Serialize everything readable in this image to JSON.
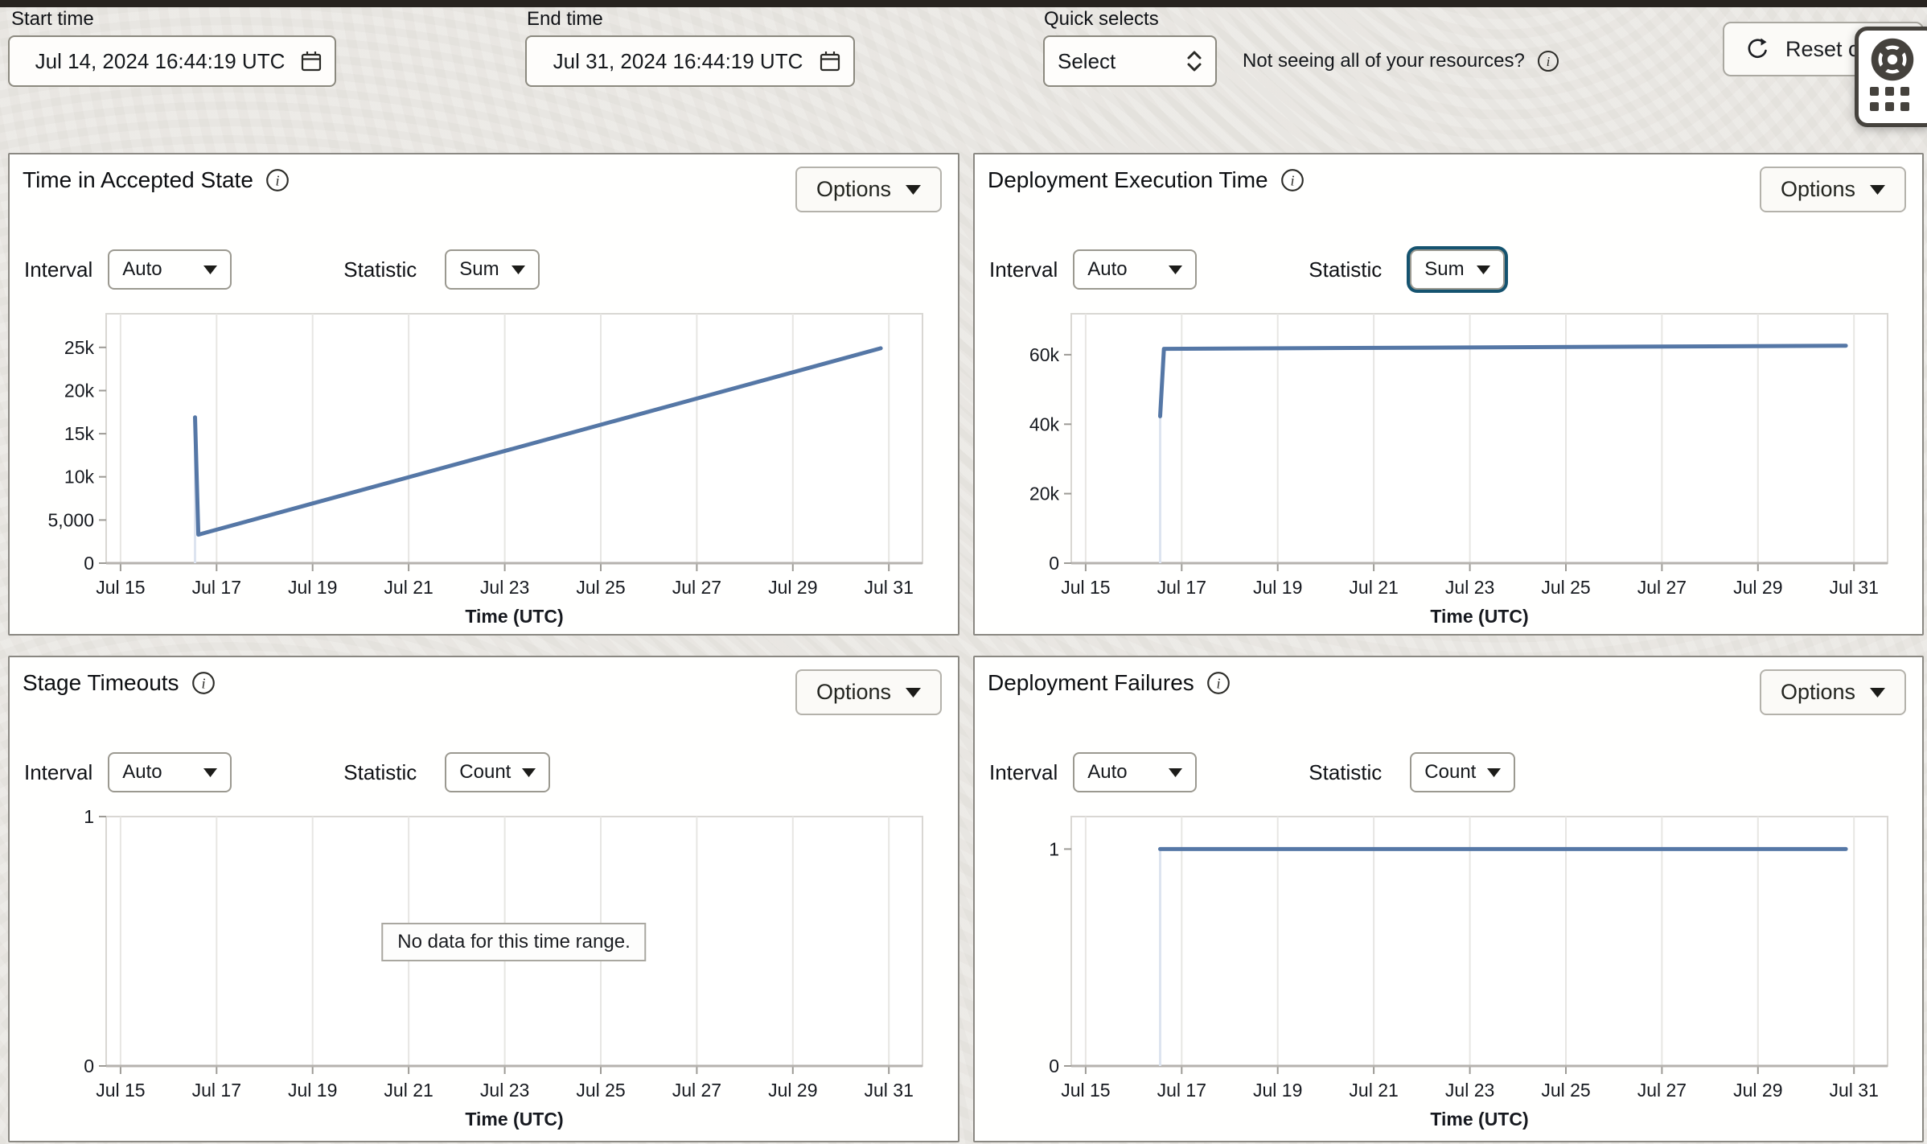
{
  "top_bar": {
    "start_time_label": "Start time",
    "start_time_value": "Jul 14, 2024 16:44:19 UTC",
    "end_time_label": "End time",
    "end_time_value": "Jul 31, 2024 16:44:19 UTC",
    "quick_selects_label": "Quick selects",
    "quick_selects_value": "Select",
    "resources_hint": "Not seeing all of your resources?",
    "reset_button_label": "Reset c"
  },
  "colors": {
    "chart_line": "#5577a6",
    "focus_ring": "#15536f"
  },
  "panels": [
    {
      "title": "Time in Accepted State",
      "options_label": "Options",
      "interval_label": "Interval",
      "interval_value": "Auto",
      "statistic_label": "Statistic",
      "statistic_value": "Sum"
    },
    {
      "title": "Deployment Execution Time",
      "options_label": "Options",
      "interval_label": "Interval",
      "interval_value": "Auto",
      "statistic_label": "Statistic",
      "statistic_value": "Sum"
    },
    {
      "title": "Stage Timeouts",
      "options_label": "Options",
      "interval_label": "Interval",
      "interval_value": "Auto",
      "statistic_label": "Statistic",
      "statistic_value": "Count",
      "no_data_message": "No data for this time range."
    },
    {
      "title": "Deployment Failures",
      "options_label": "Options",
      "interval_label": "Interval",
      "interval_value": "Auto",
      "statistic_label": "Statistic",
      "statistic_value": "Count"
    }
  ],
  "chart_data": [
    {
      "type": "line",
      "title": "Time in Accepted State",
      "xlabel": "Time (UTC)",
      "x_domain": [
        14.7,
        31.7
      ],
      "x_ticks": [
        {
          "v": 15,
          "l": "Jul 15"
        },
        {
          "v": 17,
          "l": "Jul 17"
        },
        {
          "v": 19,
          "l": "Jul 19"
        },
        {
          "v": 21,
          "l": "Jul 21"
        },
        {
          "v": 23,
          "l": "Jul 23"
        },
        {
          "v": 25,
          "l": "Jul 25"
        },
        {
          "v": 27,
          "l": "Jul 27"
        },
        {
          "v": 29,
          "l": "Jul 29"
        },
        {
          "v": 31,
          "l": "Jul 31"
        }
      ],
      "y_max": 28900,
      "y_ticks": [
        {
          "v": 0,
          "l": "0"
        },
        {
          "v": 5000,
          "l": "5,000"
        },
        {
          "v": 10000,
          "l": "10k"
        },
        {
          "v": 15000,
          "l": "15k"
        },
        {
          "v": 20000,
          "l": "20k"
        },
        {
          "v": 25000,
          "l": "25k"
        }
      ],
      "line_color": "#5577a6",
      "series": [
        {
          "name": "Sum",
          "points": [
            [
              16.55,
              16900
            ],
            [
              16.62,
              3300
            ],
            [
              30.83,
              24900
            ]
          ]
        }
      ]
    },
    {
      "type": "line",
      "title": "Deployment Execution Time",
      "xlabel": "Time (UTC)",
      "x_domain": [
        14.7,
        31.7
      ],
      "x_ticks": [
        {
          "v": 15,
          "l": "Jul 15"
        },
        {
          "v": 17,
          "l": "Jul 17"
        },
        {
          "v": 19,
          "l": "Jul 19"
        },
        {
          "v": 21,
          "l": "Jul 21"
        },
        {
          "v": 23,
          "l": "Jul 23"
        },
        {
          "v": 25,
          "l": "Jul 25"
        },
        {
          "v": 27,
          "l": "Jul 27"
        },
        {
          "v": 29,
          "l": "Jul 29"
        },
        {
          "v": 31,
          "l": "Jul 31"
        }
      ],
      "y_max": 71800,
      "y_ticks": [
        {
          "v": 0,
          "l": "0"
        },
        {
          "v": 20000,
          "l": "20k"
        },
        {
          "v": 40000,
          "l": "40k"
        },
        {
          "v": 60000,
          "l": "60k"
        }
      ],
      "line_color": "#5577a6",
      "series": [
        {
          "name": "Sum",
          "points": [
            [
              16.55,
              42300
            ],
            [
              16.63,
              61700
            ],
            [
              30.83,
              62600
            ]
          ]
        }
      ]
    },
    {
      "type": "line",
      "title": "Stage Timeouts",
      "xlabel": "Time (UTC)",
      "x_domain": [
        14.7,
        31.7
      ],
      "x_ticks": [
        {
          "v": 15,
          "l": "Jul 15"
        },
        {
          "v": 17,
          "l": "Jul 17"
        },
        {
          "v": 19,
          "l": "Jul 19"
        },
        {
          "v": 21,
          "l": "Jul 21"
        },
        {
          "v": 23,
          "l": "Jul 23"
        },
        {
          "v": 25,
          "l": "Jul 25"
        },
        {
          "v": 27,
          "l": "Jul 27"
        },
        {
          "v": 29,
          "l": "Jul 29"
        },
        {
          "v": 31,
          "l": "Jul 31"
        }
      ],
      "y_max": 1,
      "y_ticks": [
        {
          "v": 0,
          "l": "0"
        },
        {
          "v": 1,
          "l": "1"
        }
      ],
      "line_color": "#5577a6",
      "series": [],
      "no_data": "No data for this time range."
    },
    {
      "type": "line",
      "title": "Deployment Failures",
      "xlabel": "Time (UTC)",
      "x_domain": [
        14.7,
        31.7
      ],
      "x_ticks": [
        {
          "v": 15,
          "l": "Jul 15"
        },
        {
          "v": 17,
          "l": "Jul 17"
        },
        {
          "v": 19,
          "l": "Jul 19"
        },
        {
          "v": 21,
          "l": "Jul 21"
        },
        {
          "v": 23,
          "l": "Jul 23"
        },
        {
          "v": 25,
          "l": "Jul 25"
        },
        {
          "v": 27,
          "l": "Jul 27"
        },
        {
          "v": 29,
          "l": "Jul 29"
        },
        {
          "v": 31,
          "l": "Jul 31"
        }
      ],
      "y_max": 1.15,
      "y_ticks": [
        {
          "v": 0,
          "l": "0"
        },
        {
          "v": 1,
          "l": "1"
        }
      ],
      "line_color": "#5577a6",
      "series": [
        {
          "name": "Count",
          "points": [
            [
              16.55,
              1
            ],
            [
              30.83,
              1
            ]
          ]
        }
      ]
    }
  ]
}
